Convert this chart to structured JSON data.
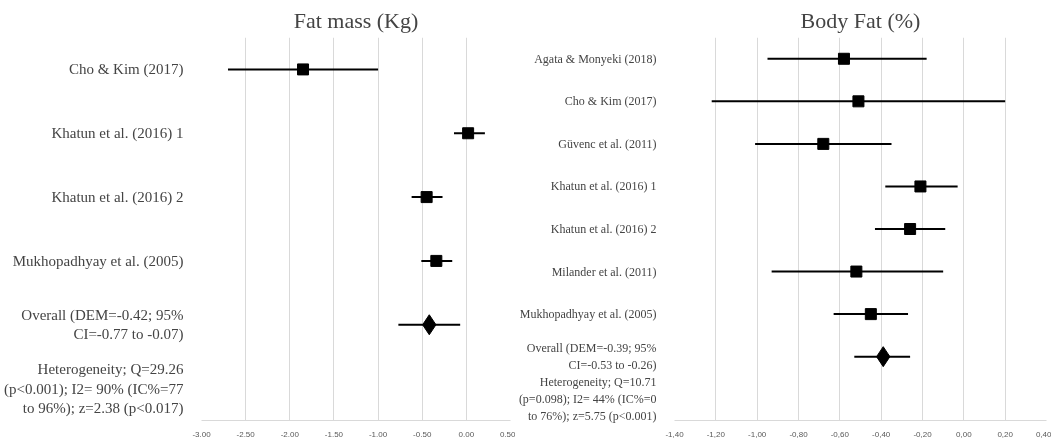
{
  "chart_data": [
    {
      "type": "scatter",
      "title": "Fat mass (Kg)",
      "orientation": "horizontal",
      "categories": [
        "Cho & Kim (2017)",
        "Khatun et al. (2016) 1",
        "Khatun et al. (2016) 2",
        "Mukhopadhyay et al. (2005)",
        "Overall (DEM=-0.42; 95% CI=-0.77 to -0.07)",
        "Heterogeneity; Q=29.26 (p<0.001); I2= 90% (IC%=77 to 96%); z=2.38 (p<0.017)"
      ],
      "series": [
        {
          "color": "#000000",
          "marker": "square",
          "values": [
            -1.85,
            0.02,
            -0.45,
            -0.34,
            null,
            null
          ],
          "errors": [
            [
              -2.7,
              -1.0
            ],
            [
              -0.14,
              0.21
            ],
            [
              -0.62,
              -0.27
            ],
            [
              -0.51,
              -0.16
            ],
            null,
            null
          ]
        },
        {
          "color": "#000000",
          "marker": "diamond",
          "values": [
            null,
            null,
            null,
            null,
            -0.42,
            null
          ],
          "errors": [
            null,
            null,
            null,
            null,
            [
              -0.77,
              -0.07
            ],
            null
          ]
        }
      ],
      "xlim": [
        -3.0,
        0.5
      ],
      "xticks": [
        {
          "value": -3.0,
          "label": "-3.00"
        },
        {
          "value": -2.5,
          "label": "-2.50"
        },
        {
          "value": -2.0,
          "label": "-2.00"
        },
        {
          "value": -1.5,
          "label": "-1.50"
        },
        {
          "value": -1.0,
          "label": "-1.00"
        },
        {
          "value": -0.5,
          "label": "-0.50"
        },
        {
          "value": 0.0,
          "label": "0.00"
        },
        {
          "value": 0.5,
          "label": "0.50"
        }
      ],
      "grid": "x"
    },
    {
      "type": "scatter",
      "title": "Body Fat (%)",
      "orientation": "horizontal",
      "categories": [
        "Agata & Monyeki (2018)",
        "Cho & Kim (2017)",
        "Güvenc et al. (2011)",
        "Khatun et al. (2016) 1",
        "Khatun et al. (2016) 2",
        "Milander et al. (2011)",
        "Mukhopadhyay et al. (2005)",
        "Overall (DEM=-0.39; 95% CI=-0.53 to -0.26)",
        "Heterogeneity; Q=10.71 (p=0.098); I2= 44% (IC%=0 to 76%); z=5.75 (p<0.001)"
      ],
      "series": [
        {
          "color": "#000000",
          "marker": "square",
          "values": [
            -0.58,
            -0.51,
            -0.68,
            -0.21,
            -0.26,
            -0.52,
            -0.45,
            null,
            null
          ],
          "errors": [
            [
              -0.95,
              -0.18
            ],
            [
              -1.22,
              0.2
            ],
            [
              -1.01,
              -0.35
            ],
            [
              -0.38,
              -0.03
            ],
            [
              -0.43,
              -0.09
            ],
            [
              -0.93,
              -0.1
            ],
            [
              -0.63,
              -0.27
            ],
            null,
            null
          ]
        },
        {
          "color": "#000000",
          "marker": "diamond",
          "values": [
            null,
            null,
            null,
            null,
            null,
            null,
            null,
            -0.39,
            null
          ],
          "errors": [
            null,
            null,
            null,
            null,
            null,
            null,
            null,
            [
              -0.53,
              -0.26
            ],
            null
          ]
        }
      ],
      "xlim": [
        -1.4,
        0.4
      ],
      "xticks": [
        {
          "value": -1.4,
          "label": "-1,40"
        },
        {
          "value": -1.2,
          "label": "-1,20"
        },
        {
          "value": -1.0,
          "label": "-1,00"
        },
        {
          "value": -0.8,
          "label": "-0,80"
        },
        {
          "value": -0.6,
          "label": "-0,60"
        },
        {
          "value": -0.4,
          "label": "-0,40"
        },
        {
          "value": -0.2,
          "label": "-0,20"
        },
        {
          "value": 0.0,
          "label": "0,00"
        },
        {
          "value": 0.2,
          "label": "0,20"
        },
        {
          "value": 0.4,
          "label": "0,40"
        }
      ],
      "grid": "x"
    }
  ]
}
